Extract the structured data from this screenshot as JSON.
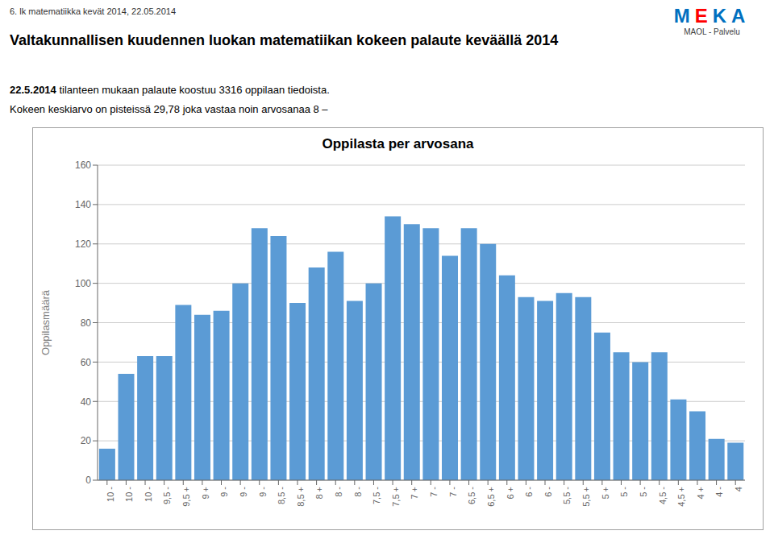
{
  "chart_data": {
    "type": "bar",
    "title": "Oppilasta per arvosana",
    "annotations": [
      "6. lk matematiikka kevät 2014, 22.05.2014",
      "Valtakunnallisen kuudennen luokan matematiikan kokeen palaute keväällä 2014",
      "22.5.2014",
      " tilanteen mukaan palaute koostuu 3316 oppilaan tiedoista.",
      "Kokeen keskiarvo on pisteissä 29,78 joka vastaa noin arvosanaa 8 –",
      "MEKA",
      "MAOL - Palvelu"
    ],
    "ylabel": "Oppilasmäärä",
    "categories": [
      "10 -",
      "10 -",
      "10 -",
      "9,5 -",
      "9,5 +",
      "9 +",
      "9 -",
      "9 -",
      "9 -",
      "8,5 -",
      "8,5 +",
      "8 +",
      "8 -",
      "8 -",
      "7,5 -",
      "7,5 +",
      "7 +",
      "7 -",
      "7 -",
      "6,5 -",
      "6,5 +",
      "6 +",
      "6 -",
      "6 -",
      "5,5 -",
      "5,5 +",
      "5 +",
      "5 -",
      "5 -",
      "4,5 -",
      "4,5 +",
      "4 +",
      "4 -",
      "4"
    ],
    "values": [
      16,
      54,
      63,
      63,
      89,
      84,
      86,
      100,
      128,
      124,
      90,
      108,
      116,
      91,
      100,
      134,
      130,
      128,
      114,
      128,
      120,
      104,
      93,
      91,
      95,
      93,
      75,
      65,
      60,
      65,
      41,
      35,
      21,
      19
    ],
    "color": "#5B9BD5",
    "ylim": [
      0,
      160
    ],
    "yticks": [
      0,
      20,
      40,
      60,
      80,
      100,
      120,
      140,
      160
    ],
    "grid": true
  }
}
